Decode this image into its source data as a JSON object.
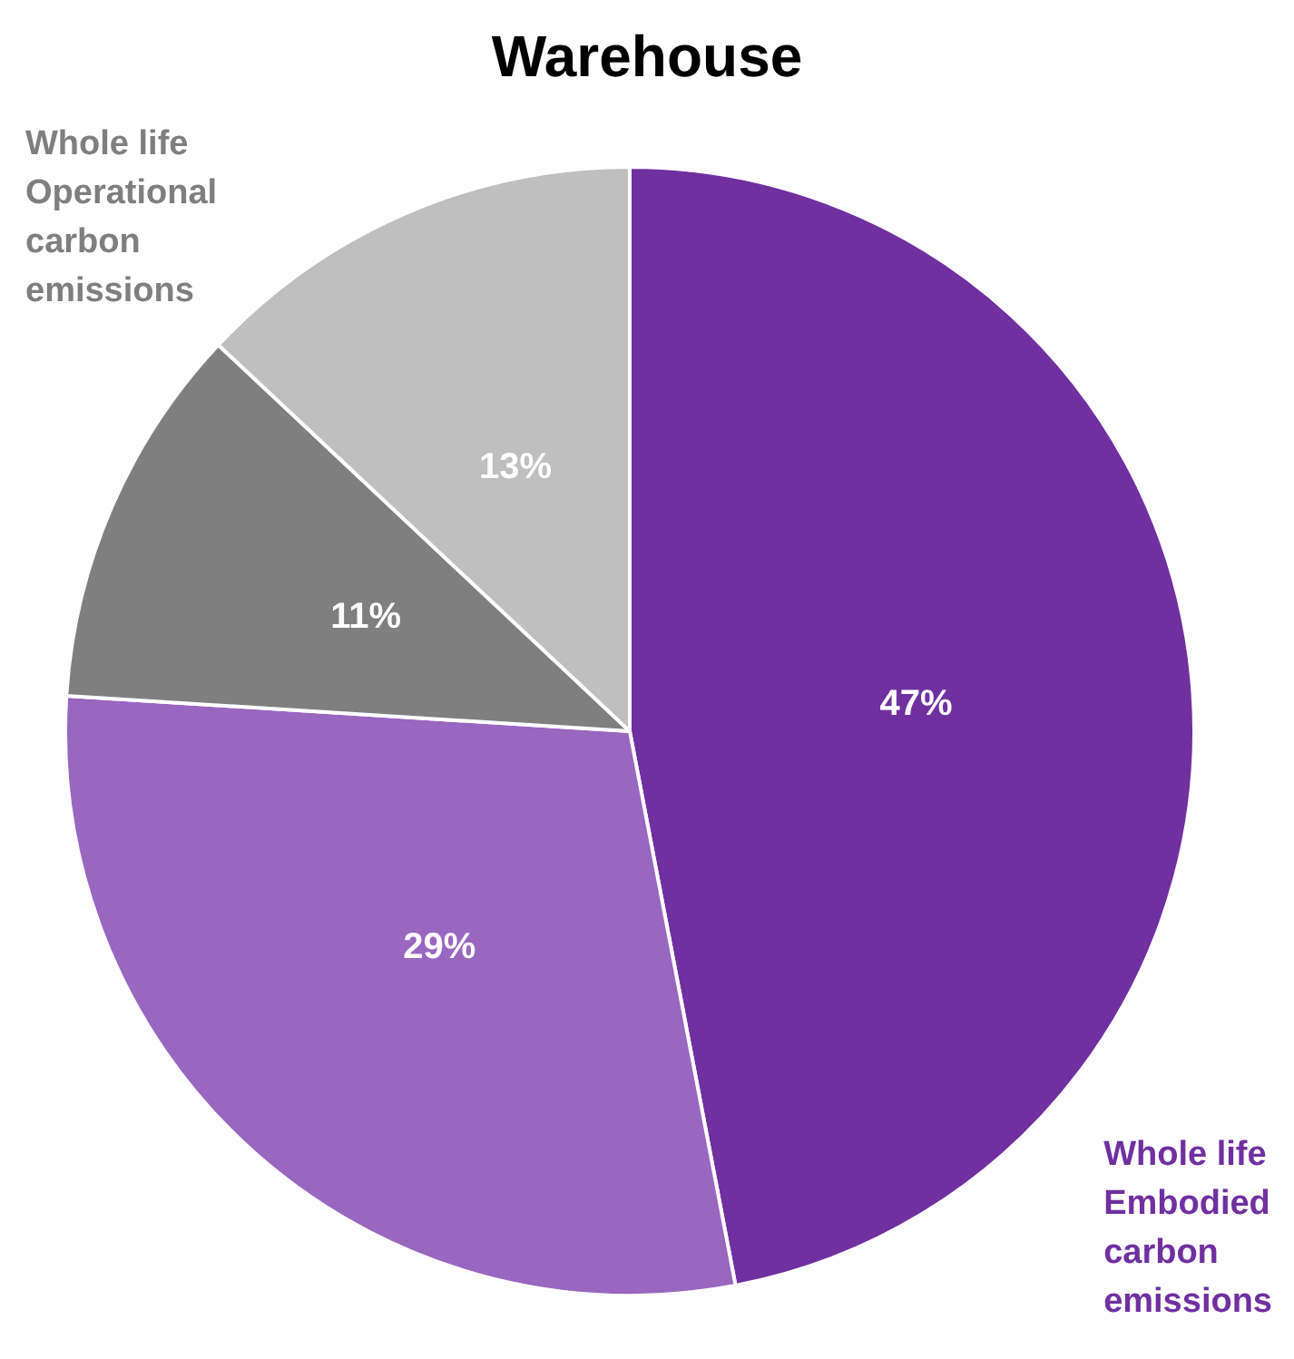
{
  "chart_data": {
    "type": "pie",
    "title": "Warehouse",
    "categories": [
      null,
      null,
      null,
      null
    ],
    "values": [
      47,
      29,
      11,
      13
    ],
    "colors": [
      "#7030a0",
      "#9966c0",
      "#7f7f7f",
      "#bfbfbf"
    ],
    "value_labels": [
      "47%",
      "29%",
      "11%",
      "13%"
    ],
    "annotations": [
      "Whole life\nEmbodied\ncarbon\nemissions",
      "Whole life\nOperational\ncarbon\nemissions"
    ]
  }
}
